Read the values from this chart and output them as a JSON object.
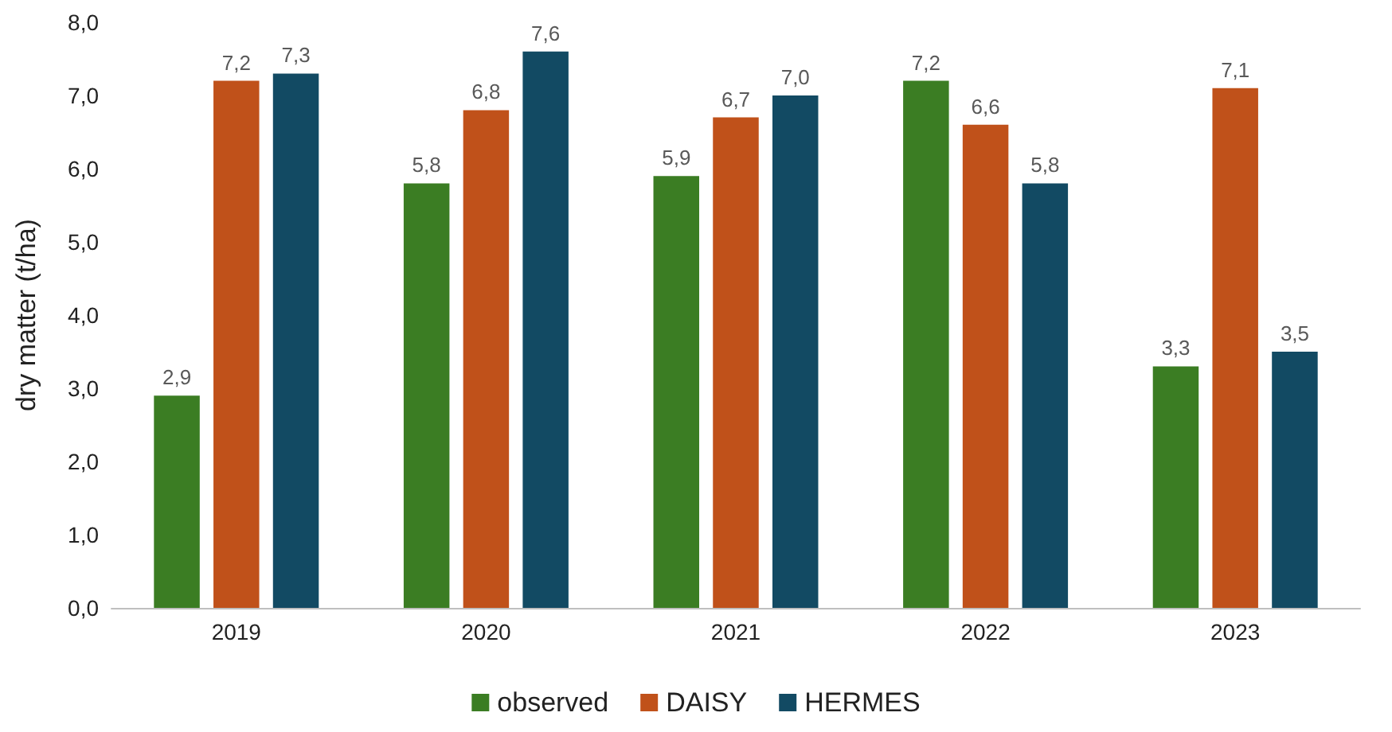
{
  "chart_data": {
    "type": "bar",
    "ylabel": "dry matter (t/ha)",
    "categories": [
      "2019",
      "2020",
      "2021",
      "2022",
      "2023"
    ],
    "series": [
      {
        "name": "observed",
        "color": "#3b7d23",
        "values": [
          2.9,
          5.8,
          5.9,
          7.2,
          3.3
        ],
        "value_labels": [
          "2,9",
          "5,8",
          "5,9",
          "7,2",
          "3,3"
        ]
      },
      {
        "name": "DAISY",
        "color": "#c0511a",
        "values": [
          7.2,
          6.8,
          6.7,
          6.6,
          7.1
        ],
        "value_labels": [
          "7,2",
          "6,8",
          "6,7",
          "6,6",
          "7,1"
        ]
      },
      {
        "name": "HERMES",
        "color": "#124a63",
        "values": [
          7.3,
          7.6,
          7.0,
          5.8,
          3.5
        ],
        "value_labels": [
          "7,3",
          "7,6",
          "7,0",
          "5,8",
          "3,5"
        ]
      }
    ],
    "ylim": [
      0,
      8
    ],
    "yticks": [
      {
        "value": 0,
        "label": "0,0"
      },
      {
        "value": 1,
        "label": "1,0"
      },
      {
        "value": 2,
        "label": "2,0"
      },
      {
        "value": 3,
        "label": "3,0"
      },
      {
        "value": 4,
        "label": "4,0"
      },
      {
        "value": 5,
        "label": "5,0"
      },
      {
        "value": 6,
        "label": "6,0"
      },
      {
        "value": 7,
        "label": "7,0"
      },
      {
        "value": 8,
        "label": "8,0"
      }
    ],
    "legend": "bottom",
    "grid": false
  }
}
